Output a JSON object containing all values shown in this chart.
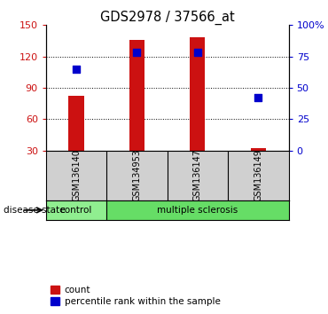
{
  "title": "GDS2978 / 37566_at",
  "samples": [
    "GSM136140",
    "GSM134953",
    "GSM136147",
    "GSM136149"
  ],
  "counts": [
    82,
    136,
    138,
    32
  ],
  "percentiles": [
    65,
    78,
    78,
    42
  ],
  "ylim_left": [
    30,
    150
  ],
  "ylim_right": [
    0,
    100
  ],
  "yticks_left": [
    30,
    60,
    90,
    120,
    150
  ],
  "yticks_right": [
    0,
    25,
    50,
    75,
    100
  ],
  "ytick_labels_right": [
    "0",
    "25",
    "50",
    "75",
    "100%"
  ],
  "bar_color": "#cc1111",
  "dot_color": "#0000cc",
  "control_color": "#90ee90",
  "ms_color": "#66dd66",
  "label_area_color": "#d0d0d0",
  "bar_width": 0.25,
  "dot_size": 35,
  "title_fontsize": 10.5,
  "tick_fontsize": 8,
  "disease_label": "disease state"
}
